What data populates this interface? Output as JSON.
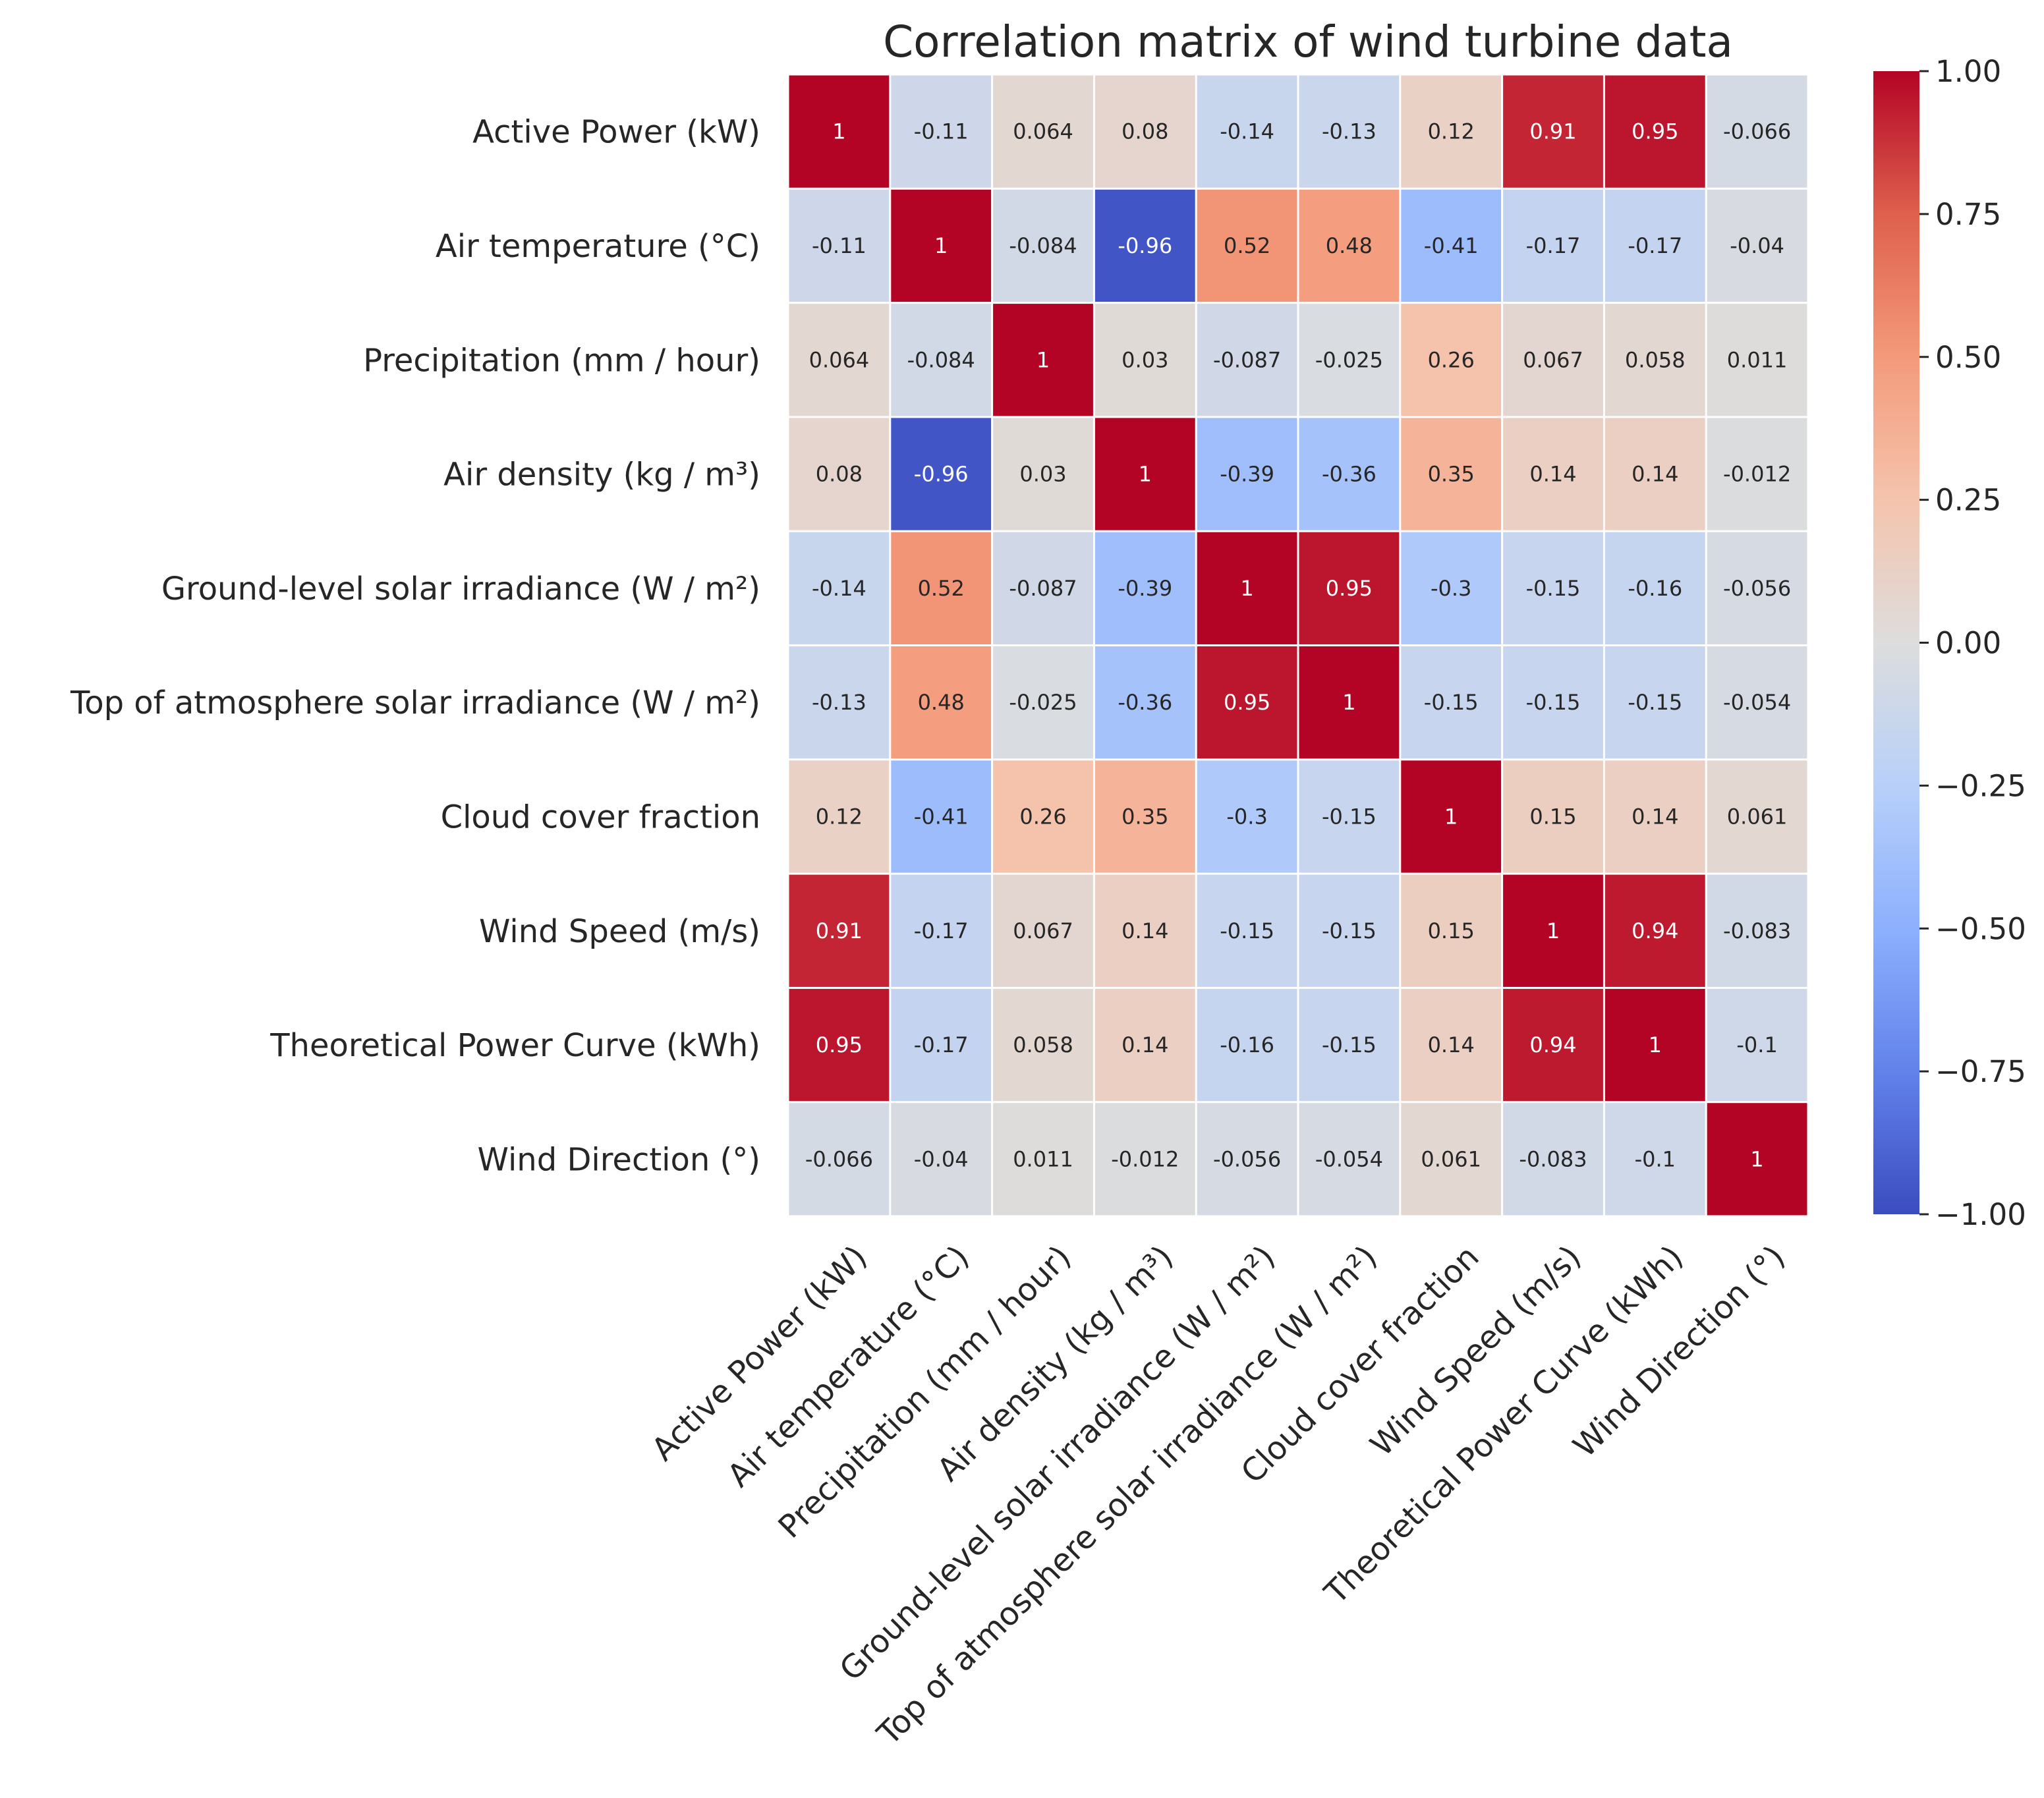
{
  "chart_data": {
    "type": "heatmap",
    "title": "Correlation matrix of wind turbine data",
    "xlabel": "",
    "ylabel": "",
    "colormap": "coolwarm",
    "vmin": -1.0,
    "vmax": 1.0,
    "variables": [
      "Active Power (kW)",
      "Air temperature (°C)",
      "Precipitation (mm / hour)",
      "Air density (kg / m³)",
      "Ground-level solar irradiance (W / m²)",
      "Top of atmosphere solar irradiance (W / m²)",
      "Cloud cover fraction",
      "Wind Speed (m/s)",
      "Theoretical Power Curve (kWh)",
      "Wind Direction (°)"
    ],
    "values": [
      [
        1,
        -0.11,
        0.064,
        0.08,
        -0.14,
        -0.13,
        0.12,
        0.91,
        0.95,
        -0.066
      ],
      [
        -0.11,
        1,
        -0.084,
        -0.96,
        0.52,
        0.48,
        -0.41,
        -0.17,
        -0.17,
        -0.04
      ],
      [
        0.064,
        -0.084,
        1,
        0.03,
        -0.087,
        -0.025,
        0.26,
        0.067,
        0.058,
        0.011
      ],
      [
        0.08,
        -0.96,
        0.03,
        1,
        -0.39,
        -0.36,
        0.35,
        0.14,
        0.14,
        -0.012
      ],
      [
        -0.14,
        0.52,
        -0.087,
        -0.39,
        1,
        0.95,
        -0.3,
        -0.15,
        -0.16,
        -0.056
      ],
      [
        -0.13,
        0.48,
        -0.025,
        -0.36,
        0.95,
        1,
        -0.15,
        -0.15,
        -0.15,
        -0.054
      ],
      [
        0.12,
        -0.41,
        0.26,
        0.35,
        -0.3,
        -0.15,
        1,
        0.15,
        0.14,
        0.061
      ],
      [
        0.91,
        -0.17,
        0.067,
        0.14,
        -0.15,
        -0.15,
        0.15,
        1,
        0.94,
        -0.083
      ],
      [
        0.95,
        -0.17,
        0.058,
        0.14,
        -0.16,
        -0.15,
        0.14,
        0.94,
        1,
        -0.1
      ],
      [
        -0.066,
        -0.04,
        0.011,
        -0.012,
        -0.056,
        -0.054,
        0.061,
        -0.083,
        -0.1,
        1
      ]
    ],
    "cell_labels": [
      [
        "1",
        "-0.11",
        "0.064",
        "0.08",
        "-0.14",
        "-0.13",
        "0.12",
        "0.91",
        "0.95",
        "-0.066"
      ],
      [
        "-0.11",
        "1",
        "-0.084",
        "-0.96",
        "0.52",
        "0.48",
        "-0.41",
        "-0.17",
        "-0.17",
        "-0.04"
      ],
      [
        "0.064",
        "-0.084",
        "1",
        "0.03",
        "-0.087",
        "-0.025",
        "0.26",
        "0.067",
        "0.058",
        "0.011"
      ],
      [
        "0.08",
        "-0.96",
        "0.03",
        "1",
        "-0.39",
        "-0.36",
        "0.35",
        "0.14",
        "0.14",
        "-0.012"
      ],
      [
        "-0.14",
        "0.52",
        "-0.087",
        "-0.39",
        "1",
        "0.95",
        "-0.3",
        "-0.15",
        "-0.16",
        "-0.056"
      ],
      [
        "-0.13",
        "0.48",
        "-0.025",
        "-0.36",
        "0.95",
        "1",
        "-0.15",
        "-0.15",
        "-0.15",
        "-0.054"
      ],
      [
        "0.12",
        "-0.41",
        "0.26",
        "0.35",
        "-0.3",
        "-0.15",
        "1",
        "0.15",
        "0.14",
        "0.061"
      ],
      [
        "0.91",
        "-0.17",
        "0.067",
        "0.14",
        "-0.15",
        "-0.15",
        "0.15",
        "1",
        "0.94",
        "-0.083"
      ],
      [
        "0.95",
        "-0.17",
        "0.058",
        "0.14",
        "-0.16",
        "-0.15",
        "0.14",
        "0.94",
        "1",
        "-0.1"
      ],
      [
        "-0.066",
        "-0.04",
        "0.011",
        "-0.012",
        "-0.056",
        "-0.054",
        "0.061",
        "-0.083",
        "-0.1",
        "1"
      ]
    ],
    "colorbar": {
      "range": [
        -1.0,
        1.0
      ],
      "ticks": [
        1.0,
        0.75,
        0.5,
        0.25,
        0.0,
        -0.25,
        -0.5,
        -0.75,
        -1.0
      ],
      "tick_labels": [
        "1.00",
        "0.75",
        "0.50",
        "0.25",
        "0.00",
        "−0.25",
        "−0.50",
        "−0.75",
        "−1.00"
      ],
      "placement": "right"
    },
    "grid": false
  }
}
